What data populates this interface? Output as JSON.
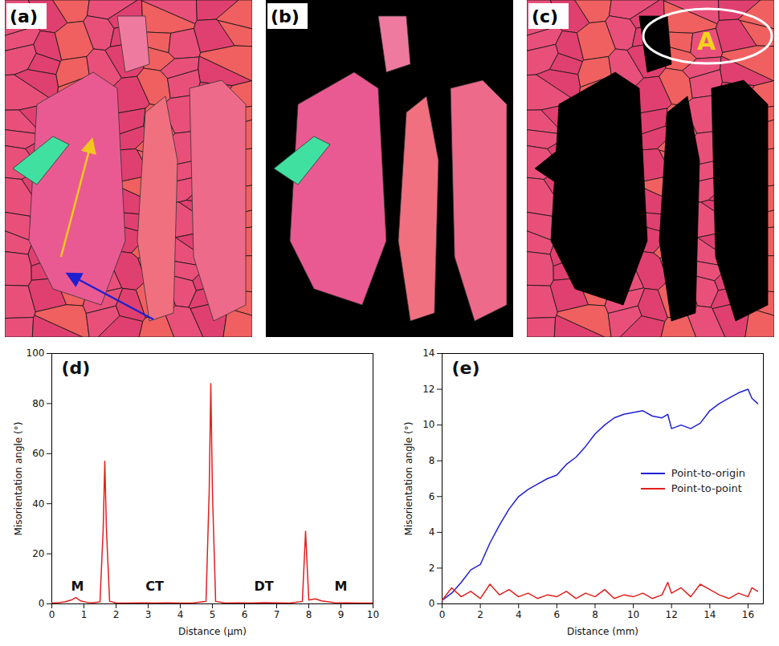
{
  "maps": [
    {
      "label": "(a)"
    },
    {
      "label": "(b)"
    },
    {
      "label": "(c)",
      "annotation": "A"
    }
  ],
  "chart_data": [
    {
      "type": "line",
      "title": "(d)",
      "x_label": "Distance (μm)",
      "y_label": "Misorientation angle (°)",
      "x": [
        0,
        0.2,
        0.4,
        0.6,
        0.75,
        0.9,
        1.1,
        1.3,
        1.5,
        1.6,
        1.65,
        1.7,
        1.8,
        2.0,
        2.4,
        2.8,
        3.2,
        3.6,
        4.0,
        4.4,
        4.8,
        4.9,
        4.95,
        5.0,
        5.1,
        5.4,
        5.8,
        6.2,
        6.6,
        7.0,
        7.4,
        7.8,
        7.85,
        7.9,
        7.95,
        8.0,
        8.2,
        8.4,
        8.8,
        9.2,
        9.6,
        10
      ],
      "values": [
        0.3,
        0.5,
        0.8,
        1.5,
        2.5,
        1.2,
        0.6,
        0.5,
        0.8,
        30,
        57,
        30,
        1.0,
        0.4,
        0.3,
        0.4,
        0.3,
        0.4,
        0.3,
        0.4,
        1.0,
        45,
        88,
        45,
        1.0,
        0.3,
        0.4,
        0.3,
        0.5,
        0.4,
        0.3,
        1.0,
        15,
        29,
        15,
        1.5,
        2.0,
        1.2,
        0.5,
        0.4,
        0.3,
        0.3
      ],
      "color": "#e0201c",
      "xlim": [
        0,
        10
      ],
      "xticks": [
        0,
        1,
        2,
        3,
        4,
        5,
        6,
        7,
        8,
        9,
        10
      ],
      "ylim": [
        0,
        100
      ],
      "yticks": [
        0,
        20,
        40,
        60,
        80,
        100
      ],
      "annotations": [
        {
          "text": "M",
          "x": 0.8,
          "y": 7
        },
        {
          "text": "CT",
          "x": 3.2,
          "y": 7
        },
        {
          "text": "DT",
          "x": 6.6,
          "y": 7
        },
        {
          "text": "M",
          "x": 9.0,
          "y": 7
        }
      ]
    },
    {
      "type": "line",
      "title": "(e)",
      "x_label": "Distance (mm)",
      "y_label": "Misorientation angle (°)",
      "x": [
        0,
        0.5,
        1,
        1.5,
        2,
        2.5,
        3,
        3.5,
        4,
        4.5,
        5,
        5.5,
        6,
        6.5,
        7,
        7.5,
        8,
        8.5,
        9,
        9.5,
        10,
        10.5,
        11,
        11.5,
        11.8,
        12,
        12.5,
        13,
        13.5,
        14,
        14.5,
        15,
        15.5,
        16,
        16.2,
        16.5
      ],
      "series": [
        {
          "name": "Point-to-origin",
          "color": "#1f1fd6",
          "values": [
            0.2,
            0.6,
            1.2,
            1.9,
            2.2,
            3.4,
            4.4,
            5.3,
            6.0,
            6.4,
            6.7,
            7.0,
            7.2,
            7.8,
            8.2,
            8.8,
            9.5,
            10.0,
            10.4,
            10.6,
            10.7,
            10.8,
            10.5,
            10.4,
            10.6,
            9.8,
            10.0,
            9.8,
            10.1,
            10.8,
            11.2,
            11.5,
            11.8,
            12.0,
            11.5,
            11.2
          ]
        },
        {
          "name": "Point-to-point",
          "color": "#e0201c",
          "values": [
            0.2,
            0.9,
            0.4,
            0.7,
            0.3,
            1.1,
            0.5,
            0.8,
            0.4,
            0.6,
            0.3,
            0.5,
            0.4,
            0.7,
            0.3,
            0.6,
            0.4,
            0.8,
            0.3,
            0.5,
            0.4,
            0.6,
            0.3,
            0.5,
            1.2,
            0.6,
            0.9,
            0.4,
            1.1,
            0.8,
            0.5,
            0.3,
            0.6,
            0.4,
            0.9,
            0.7
          ]
        }
      ],
      "xlim": [
        0,
        16.8
      ],
      "xticks": [
        0,
        2,
        4,
        6,
        8,
        10,
        12,
        14,
        16
      ],
      "ylim": [
        0,
        14
      ],
      "yticks": [
        0,
        2,
        4,
        6,
        8,
        10,
        12,
        14
      ],
      "legend": "right"
    }
  ]
}
